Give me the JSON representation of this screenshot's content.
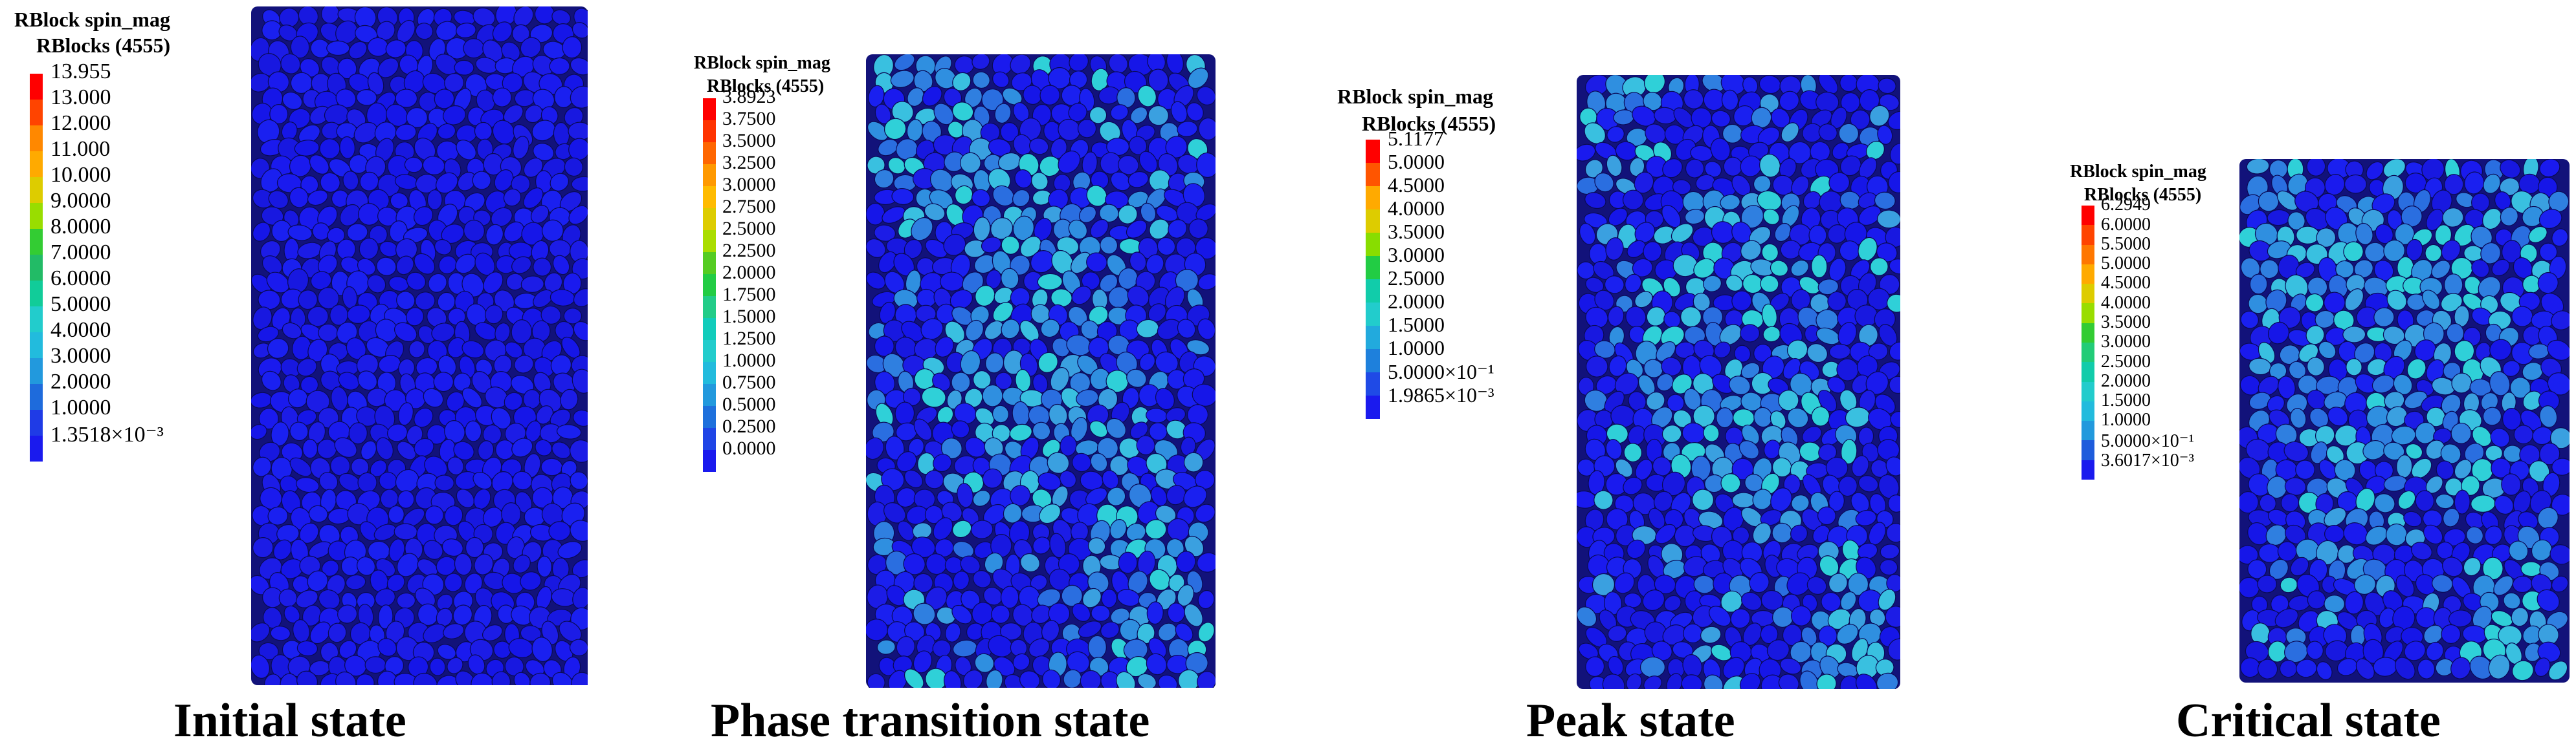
{
  "panels": [
    {
      "caption": "Initial state",
      "legend_title_line1": "RBlock spin_mag",
      "legend_title_line2": "RBlocks (4555)",
      "legend_values": [
        "13.955",
        "13.000",
        "12.000",
        "11.000",
        "10.000",
        "9.0000",
        "8.0000",
        "7.0000",
        "6.0000",
        "5.0000",
        "4.0000",
        "3.0000",
        "2.0000",
        "1.0000",
        "1.3518×10⁻³"
      ],
      "legend_colors": [
        "#ff0000",
        "#ff4400",
        "#ff8800",
        "#ffaa00",
        "#ddcc00",
        "#99dd00",
        "#33cc33",
        "#22bb66",
        "#11cc99",
        "#22cccc",
        "#22bbdd",
        "#2299dd",
        "#1e6bdc",
        "#1f3be6",
        "#1a1aee"
      ]
    },
    {
      "caption": "Phase transition state",
      "legend_title_line1": "RBlock spin_mag",
      "legend_title_line2": "RBlocks (4555)",
      "legend_values": [
        "3.8923",
        "3.7500",
        "3.5000",
        "3.2500",
        "3.0000",
        "2.7500",
        "2.5000",
        "2.2500",
        "2.0000",
        "1.7500",
        "1.5000",
        "1.2500",
        "1.0000",
        "0.7500",
        "0.5000",
        "0.2500",
        "0.0000"
      ],
      "legend_colors": [
        "#ff0000",
        "#ff3300",
        "#ff6600",
        "#ff9900",
        "#ffbb00",
        "#ddcc00",
        "#aadd00",
        "#55cc22",
        "#22cc44",
        "#22cc88",
        "#11ccbb",
        "#22cccc",
        "#22bbdd",
        "#2299dd",
        "#1e70dc",
        "#1f45e6",
        "#1a1aee"
      ]
    },
    {
      "caption": "Peak state",
      "legend_title_line1": "RBlock spin_mag",
      "legend_title_line2": "RBlocks (4555)",
      "legend_values": [
        "5.1177",
        "5.0000",
        "4.5000",
        "4.0000",
        "3.5000",
        "3.0000",
        "2.5000",
        "2.0000",
        "1.5000",
        "1.0000",
        "5.0000×10⁻¹",
        "1.9865×10⁻³"
      ],
      "legend_colors": [
        "#ff0000",
        "#ff5500",
        "#ffaa00",
        "#ddcc00",
        "#88dd00",
        "#22cc44",
        "#11ccaa",
        "#22cccc",
        "#22aadd",
        "#1e80dc",
        "#1f4ae6",
        "#1a1aee"
      ]
    },
    {
      "caption": "Critical state",
      "legend_title_line1": "RBlock spin_mag",
      "legend_title_line2": "RBlocks (4555)",
      "legend_values": [
        "6.2949",
        "6.0000",
        "5.5000",
        "5.0000",
        "4.5000",
        "4.0000",
        "3.5000",
        "3.0000",
        "2.5000",
        "2.0000",
        "1.5000",
        "1.0000",
        "5.0000×10⁻¹",
        "3.6017×10⁻³"
      ],
      "legend_colors": [
        "#ff0000",
        "#ff4400",
        "#ff7700",
        "#ffaa00",
        "#ddcc00",
        "#99dd00",
        "#33cc33",
        "#22cc77",
        "#11ccaa",
        "#22cccc",
        "#22bbdd",
        "#2299dd",
        "#1e5cdc",
        "#1a1aee"
      ]
    }
  ]
}
